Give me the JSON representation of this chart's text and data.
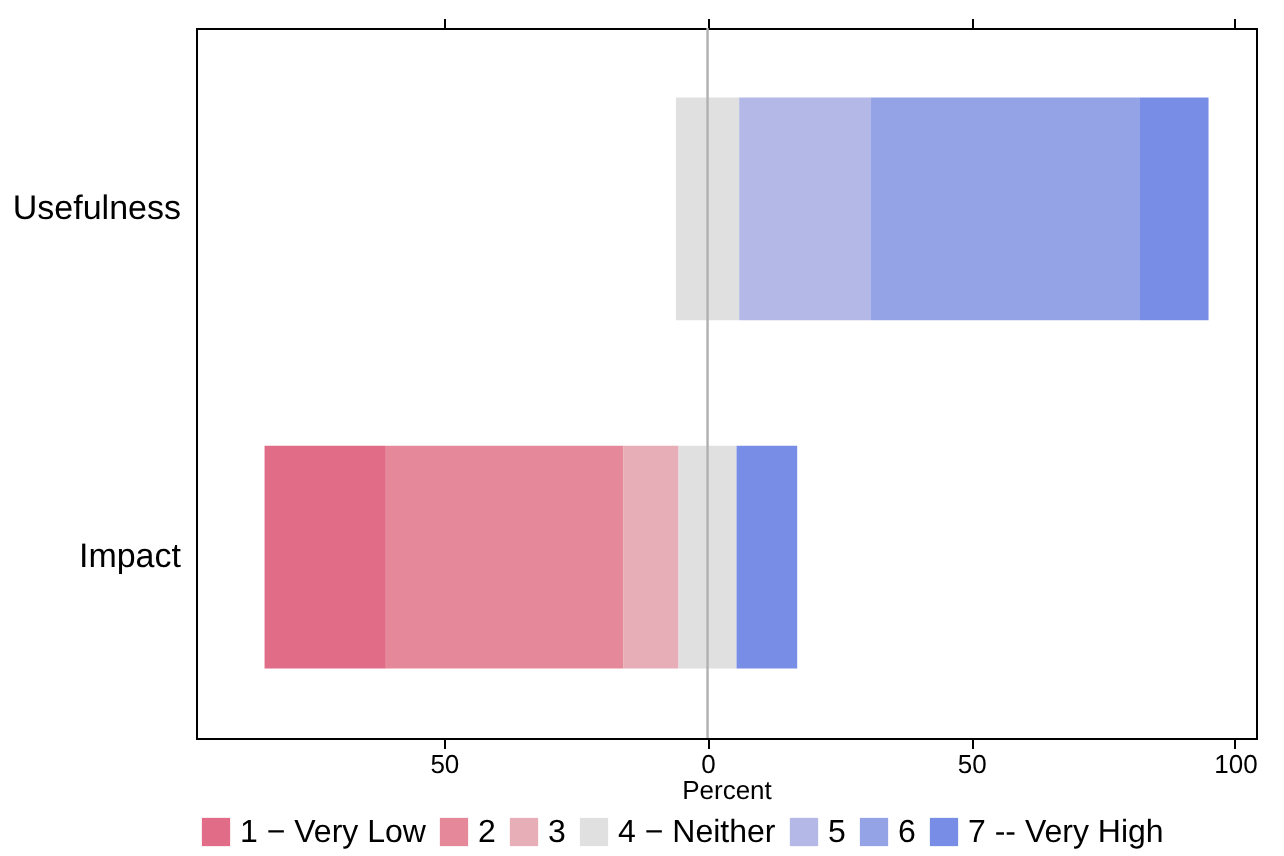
{
  "chart_data": {
    "type": "bar",
    "orientation": "horizontal",
    "xlabel": "Percent",
    "categories": [
      "Usefulness",
      "Impact"
    ],
    "series": [
      {
        "name": "1 − Very Low",
        "color": "#e06c87",
        "base": [
          null,
          -84
        ],
        "values": [
          null,
          23
        ]
      },
      {
        "name": "2",
        "color": "#e5899a",
        "base": [
          null,
          -61
        ],
        "values": [
          null,
          45
        ]
      },
      {
        "name": "3",
        "color": "#e8aeb8",
        "base": [
          null,
          -16
        ],
        "values": [
          null,
          10.5
        ]
      },
      {
        "name": "4 − Neither",
        "color": "#e0e0e0",
        "base": [
          -6,
          -5.5
        ],
        "values": [
          12,
          11
        ]
      },
      {
        "name": "5",
        "color": "#b3b8e6",
        "base": [
          6,
          null
        ],
        "values": [
          25,
          null
        ]
      },
      {
        "name": "6",
        "color": "#94a3e6",
        "base": [
          31,
          null
        ],
        "values": [
          51,
          null
        ]
      },
      {
        "name": "7 -- Very High",
        "color": "#788ee6",
        "base": [
          82,
          5.5
        ],
        "values": [
          13,
          11.5
        ]
      }
    ],
    "xlim": [
      -97,
      104
    ],
    "xticks": [
      {
        "value": -50,
        "label": "50"
      },
      0,
      50,
      100
    ],
    "ref_lines": [
      {
        "axis": "x",
        "value": 0,
        "label": null,
        "color": "#b0b0b0"
      }
    ],
    "grid": false,
    "legend": "bottom"
  }
}
